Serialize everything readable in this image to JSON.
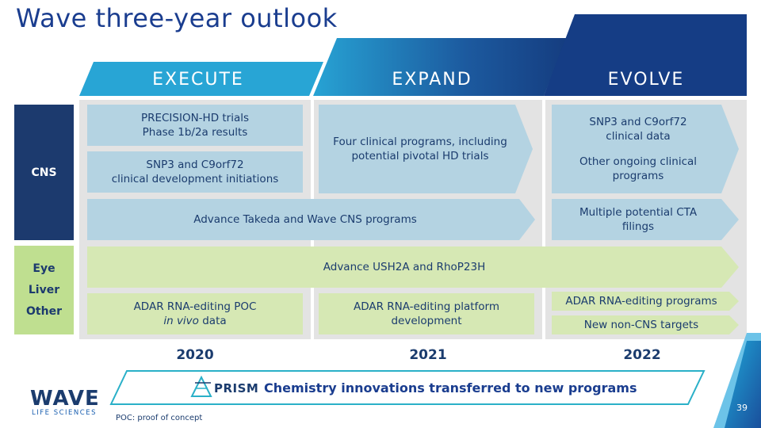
{
  "title": "Wave three-year outlook",
  "phases": [
    "EXECUTE",
    "EXPAND",
    "EVOLVE"
  ],
  "rows": {
    "cns": "CNS",
    "other": [
      "Eye",
      "Liver",
      "Other"
    ]
  },
  "boxes": {
    "precision_hd": [
      "PRECISION-HD trials",
      "Phase 1b/2a results"
    ],
    "snp3_2020": [
      "SNP3 and C9orf72",
      "clinical development initiations"
    ],
    "four_clinical": [
      "Four clinical programs, including",
      "potential pivotal HD trials"
    ],
    "snp3_2022": [
      "SNP3 and C9orf72",
      "clinical data"
    ],
    "other_ongoing": [
      "Other ongoing clinical",
      "programs"
    ],
    "takeda": "Advance Takeda and Wave CNS programs",
    "cta": [
      "Multiple potential CTA",
      "filings"
    ],
    "ush2a": "Advance USH2A and RhoP23H",
    "adar_poc": [
      "ADAR RNA-editing POC"
    ],
    "adar_poc_italic": "in vivo",
    "adar_poc_tail": " data",
    "adar_platform": [
      "ADAR RNA-editing platform",
      "development"
    ],
    "adar_programs": "ADAR RNA-editing programs",
    "non_cns": "New non-CNS targets"
  },
  "years": [
    "2020",
    "2021",
    "2022"
  ],
  "prism": {
    "brand": "PRISM",
    "tagline": "Chemistry innovations transferred to new programs"
  },
  "logo": {
    "name": "WAVE",
    "sub": "LIFE SCIENCES"
  },
  "footnote": "POC: proof of concept",
  "page_number": "39",
  "colors": {
    "navy": "#1c3a6e",
    "blue_dark": "#1a3d8f",
    "light_blue": "#b4d3e2",
    "light_green": "#d6e8b4",
    "green_label": "#bfdf90",
    "panel_gray": "#e3e3e3"
  }
}
